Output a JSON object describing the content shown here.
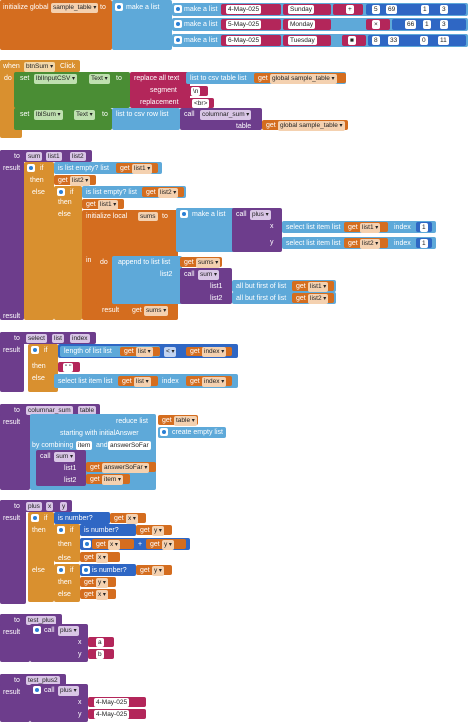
{
  "colors": {
    "global": "#d46d1f",
    "list": "#5ea9d9",
    "text": "#b3265a",
    "math": "#2f67c4",
    "proc": "#6d3d8c",
    "control": "#d9902f",
    "component": "#4a8d34",
    "local": "#d46d1f"
  },
  "b1": {
    "init": "initialize global",
    "name": "sample_table",
    "to": "to",
    "make_list": "make a list",
    "rows": [
      {
        "date": "4-May-025",
        "day": "Sunday",
        "op": "+",
        "a": "5",
        "b": "69",
        "c": "1",
        "d": "3"
      },
      {
        "date": "5-May-025",
        "day": "Monday",
        "op": "×",
        "a": "x",
        "b": "66",
        "c": "1",
        "d": "3"
      },
      {
        "date": "6-May-025",
        "day": "Tuesday",
        "op": "■",
        "a": "8",
        "b": "33",
        "c": "0",
        "d": "11"
      }
    ]
  },
  "b2": {
    "when": "when",
    "comp": "btnSum",
    "event": "Click",
    "do": "do",
    "set": "set",
    "lbl1": "lblInputCSV",
    "text_prop": "Text",
    "to": "to",
    "replace": "replace all text",
    "csv_table": "list to csv table  list",
    "get": "get",
    "global_table": "global sample_table",
    "segment": "segment",
    "seg_val": "\\n",
    "replacement": "replacement",
    "rep_val": "<br>",
    "lbl2": "lblSum",
    "csv_row": "list to csv row  list",
    "call": "call",
    "proc": "columnar_sum",
    "table_kw": "table"
  },
  "b3": {
    "to": "to",
    "name": "sum",
    "p1": "list1",
    "p2": "list2",
    "result": "result",
    "if": "if",
    "then": "then",
    "else": "else",
    "is_empty": "is list empty?  list",
    "get": "get",
    "list1": "list1",
    "list2": "list2",
    "init_local": "initialize local",
    "sums": "sums",
    "to_kw": "to",
    "make_list": "make a list",
    "call": "call",
    "plus": "plus",
    "x": "x",
    "y": "y",
    "select": "select list item  list",
    "index": "index",
    "one": "1",
    "in": "in",
    "do": "do",
    "append": "append to list  list",
    "list1_kw": "list1",
    "list2_kw": "list2",
    "all_but": "all but first of list"
  },
  "b4": {
    "to": "to",
    "name": "select",
    "p1": "list",
    "p2": "index",
    "result": "result",
    "if": "if",
    "then": "then",
    "else": "else",
    "length": "length of list  list",
    "get": "get",
    "list": "list",
    "op": "<",
    "index": "index",
    "empty": "\" \"",
    "select": "select list item  list",
    "index_kw": "index"
  },
  "b5": {
    "to": "to",
    "name": "columnar_sum",
    "p1": "table",
    "result": "result",
    "reduce": "reduce  list",
    "get": "get",
    "table": "table",
    "starting": "starting with initialAnswer",
    "empty_list": "create empty list",
    "combining": "by combining",
    "item": "item",
    "and": "and",
    "answer": "answerSoFar",
    "call": "call",
    "sum": "sum",
    "list1": "list1",
    "list2": "list2"
  },
  "b6": {
    "to": "to",
    "name": "plus",
    "p1": "x",
    "p2": "y",
    "result": "result",
    "if": "if",
    "then": "then",
    "else": "else",
    "is_number": "is number?",
    "get": "get",
    "plus_op": "+"
  },
  "b7": {
    "to": "to",
    "name": "test_plus",
    "result": "result",
    "call": "call",
    "plus": "plus",
    "x": "x",
    "y": "y",
    "a": "a",
    "b": "b"
  },
  "b8": {
    "to": "to",
    "name": "test_plus2",
    "result": "result",
    "call": "call",
    "plus": "plus",
    "x": "x",
    "y": "y",
    "d1": "4-May-025",
    "d2": "4-May-025"
  }
}
